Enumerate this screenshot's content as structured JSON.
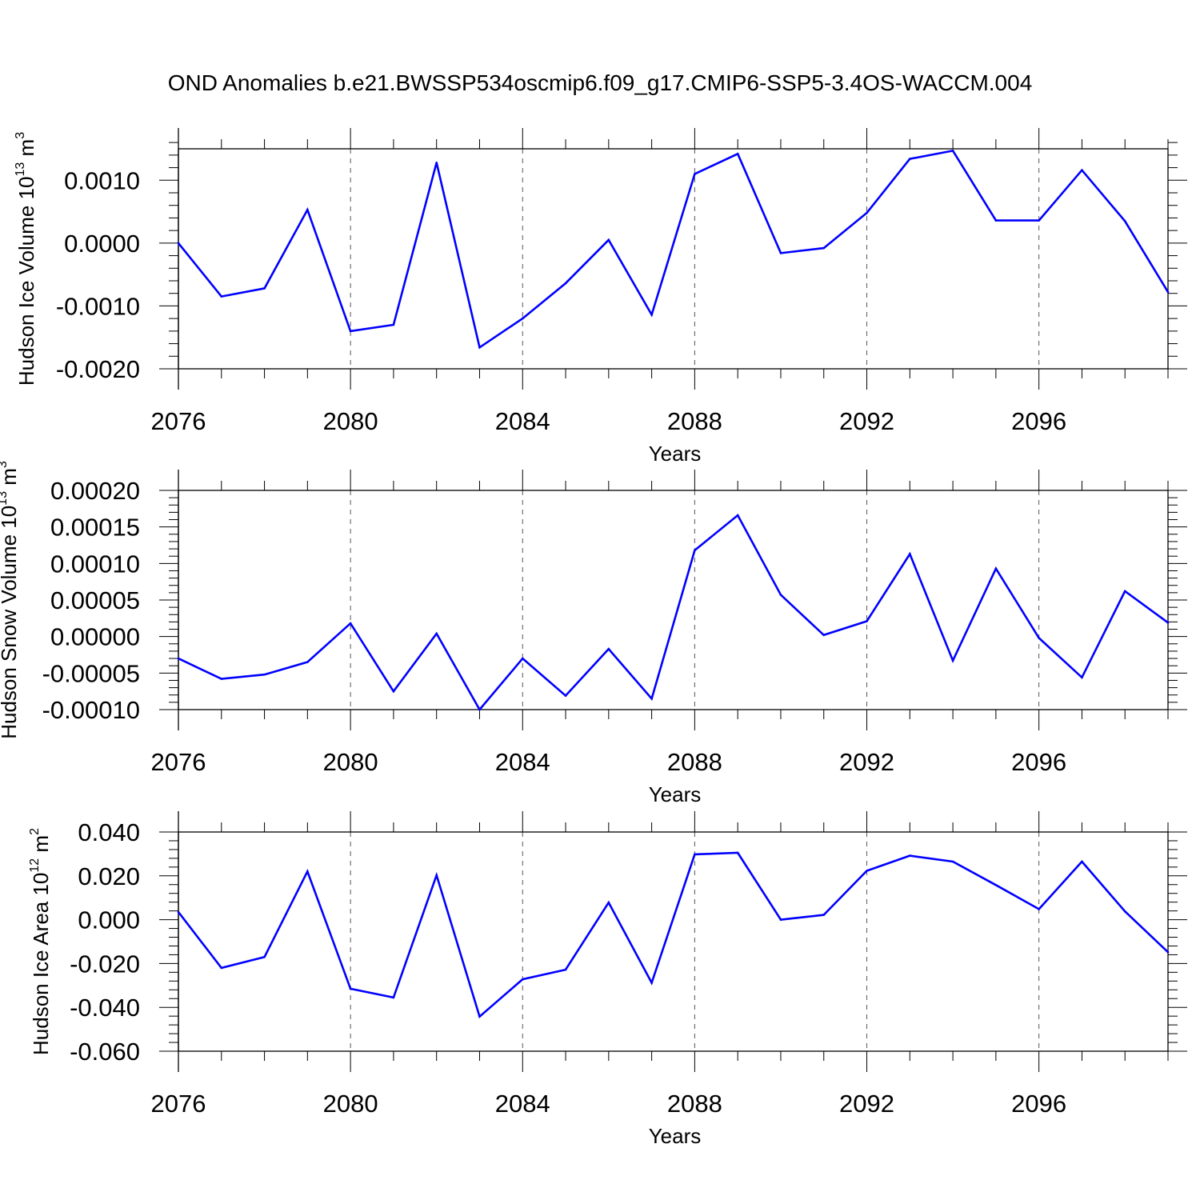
{
  "title": "OND Anomalies b.e21.BWSSP534oscmip6.f09_g17.CMIP6-SSP5-3.4OS-WACCM.004",
  "colors": {
    "series": "#0000ff",
    "axis": "#000000",
    "grid": "#555555"
  },
  "chart_data": [
    {
      "type": "line",
      "ylabel": "Hudson Ice Volume 10",
      "ylabel_exp": "13",
      "ylabel_unit": " m",
      "ylabel_unit_exp": "3",
      "xlabel": "Years",
      "xlim": [
        2076,
        2099
      ],
      "ylim": [
        -0.002,
        0.0015
      ],
      "yticks": [
        -0.002,
        -0.001,
        0.0,
        0.001
      ],
      "ytick_labels": [
        "-0.0020",
        "-0.0010",
        "0.0000",
        "0.0010"
      ],
      "xticks": [
        2076,
        2080,
        2084,
        2088,
        2092,
        2096
      ],
      "xtick_labels": [
        "2076",
        "2080",
        "2084",
        "2088",
        "2092",
        "2096"
      ],
      "x": [
        2076,
        2077,
        2078,
        2079,
        2080,
        2081,
        2082,
        2083,
        2084,
        2085,
        2086,
        2087,
        2088,
        2089,
        2090,
        2091,
        2092,
        2093,
        2094,
        2095,
        2096,
        2097,
        2098,
        2099
      ],
      "values": [
        0.0,
        -0.00085,
        -0.00072,
        0.00053,
        -0.0014,
        -0.0013,
        0.00128,
        -0.00166,
        -0.0012,
        -0.00064,
        5e-05,
        -0.00114,
        0.0011,
        0.00142,
        -0.00016,
        -8e-05,
        0.00048,
        0.00134,
        0.00147,
        0.00036,
        0.00036,
        0.00116,
        0.00035,
        -0.00078
      ]
    },
    {
      "type": "line",
      "ylabel": "Hudson Snow Volume 10",
      "ylabel_exp": "13",
      "ylabel_unit": " m",
      "ylabel_unit_exp": "3",
      "xlabel": "Years",
      "xlim": [
        2076,
        2099
      ],
      "ylim": [
        -0.0001,
        0.0002
      ],
      "yticks": [
        -0.0001,
        -5e-05,
        0.0,
        5e-05,
        0.0001,
        0.00015,
        0.0002
      ],
      "ytick_labels": [
        "-0.00010",
        "-0.00005",
        "0.00000",
        "0.00005",
        "0.00010",
        "0.00015",
        "0.00020"
      ],
      "xticks": [
        2076,
        2080,
        2084,
        2088,
        2092,
        2096
      ],
      "xtick_labels": [
        "2076",
        "2080",
        "2084",
        "2088",
        "2092",
        "2096"
      ],
      "x": [
        2076,
        2077,
        2078,
        2079,
        2080,
        2081,
        2082,
        2083,
        2084,
        2085,
        2086,
        2087,
        2088,
        2089,
        2090,
        2091,
        2092,
        2093,
        2094,
        2095,
        2096,
        2097,
        2098,
        2099
      ],
      "values": [
        -3e-05,
        -5.8e-05,
        -5.2e-05,
        -3.5e-05,
        1.8e-05,
        -7.5e-05,
        4e-06,
        -0.0001,
        -3e-05,
        -8.1e-05,
        -1.7e-05,
        -8.5e-05,
        0.000118,
        0.000166,
        5.7e-05,
        2e-06,
        2.1e-05,
        0.000113,
        -3.3e-05,
        9.3e-05,
        -2e-06,
        -5.6e-05,
        6.2e-05,
        1.9e-05
      ]
    },
    {
      "type": "line",
      "ylabel": "Hudson Ice Area 10",
      "ylabel_exp": "12",
      "ylabel_unit": " m",
      "ylabel_unit_exp": "2",
      "xlabel": "Years",
      "xlim": [
        2076,
        2099
      ],
      "ylim": [
        -0.06,
        0.04
      ],
      "yticks": [
        -0.06,
        -0.04,
        -0.02,
        0.0,
        0.02,
        0.04
      ],
      "ytick_labels": [
        "-0.060",
        "-0.040",
        "-0.020",
        "0.000",
        "0.020",
        "0.040"
      ],
      "xticks": [
        2076,
        2080,
        2084,
        2088,
        2092,
        2096
      ],
      "xtick_labels": [
        "2076",
        "2080",
        "2084",
        "2088",
        "2092",
        "2096"
      ],
      "x": [
        2076,
        2077,
        2078,
        2079,
        2080,
        2081,
        2082,
        2083,
        2084,
        2085,
        2086,
        2087,
        2088,
        2089,
        2090,
        2091,
        2092,
        2093,
        2094,
        2095,
        2096,
        2097,
        2098,
        2099
      ],
      "values": [
        0.0035,
        -0.022,
        -0.017,
        0.022,
        -0.0315,
        -0.0355,
        0.0203,
        -0.0442,
        -0.0272,
        -0.0228,
        0.0078,
        -0.0288,
        0.0298,
        0.0305,
        0.0,
        0.0022,
        0.0223,
        0.0292,
        0.0265,
        0.0158,
        0.0048,
        0.0265,
        0.0038,
        -0.0148
      ]
    }
  ]
}
